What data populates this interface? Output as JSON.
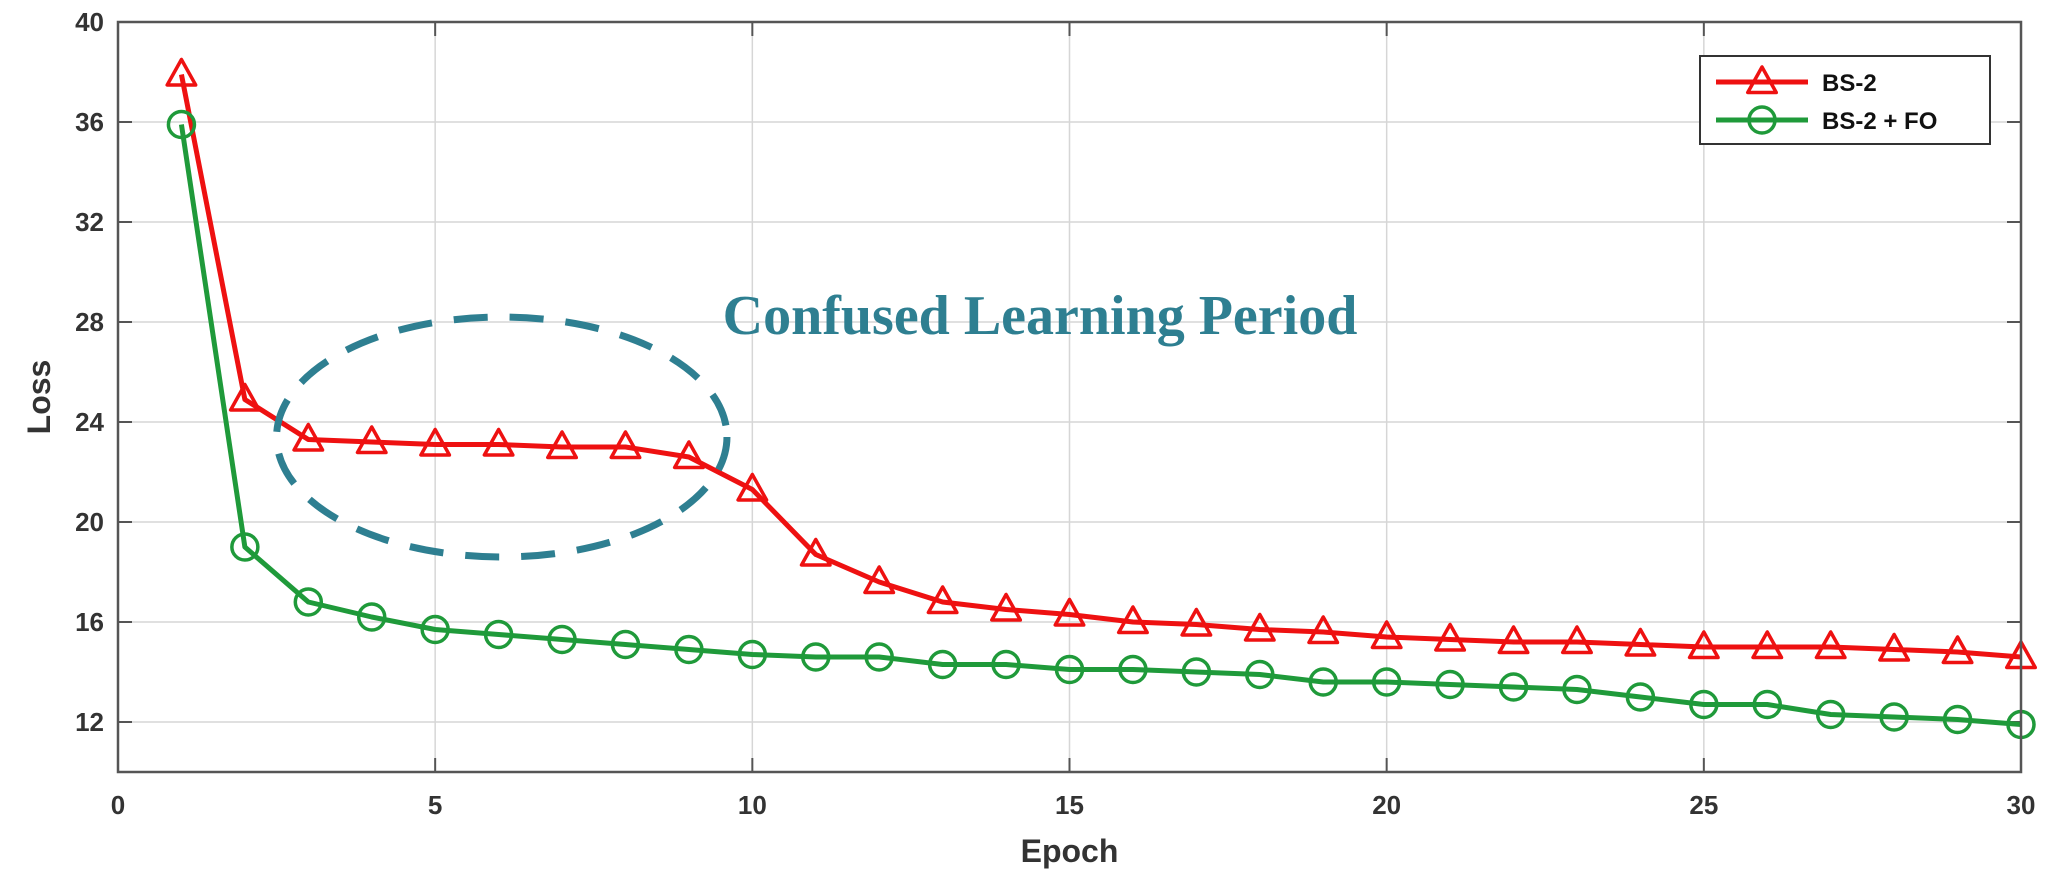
{
  "colors": {
    "series_red": "#ee1111",
    "series_green": "#1f9a3a",
    "annotation": "#2e7f91",
    "grid": "#d6d6d6",
    "axis": "#555555"
  },
  "chart_data": {
    "type": "line",
    "title": "",
    "xlabel": "Epoch",
    "ylabel": "Loss",
    "xlim": [
      0,
      30
    ],
    "ylim": [
      10,
      40
    ],
    "xticks": [
      0,
      5,
      10,
      15,
      20,
      25,
      30
    ],
    "yticks": [
      12,
      16,
      20,
      24,
      28,
      32,
      36,
      40
    ],
    "grid": true,
    "legend_position": "top-right",
    "x": [
      1,
      2,
      3,
      4,
      5,
      6,
      7,
      8,
      9,
      10,
      11,
      12,
      13,
      14,
      15,
      16,
      17,
      18,
      19,
      20,
      21,
      22,
      23,
      24,
      25,
      26,
      27,
      28,
      29,
      30
    ],
    "series": [
      {
        "name": "BS-2",
        "marker": "triangle",
        "color": "#ee1111",
        "values": [
          37.9,
          24.9,
          23.3,
          23.2,
          23.1,
          23.1,
          23.0,
          23.0,
          22.6,
          21.3,
          18.7,
          17.6,
          16.8,
          16.5,
          16.3,
          16.0,
          15.9,
          15.7,
          15.6,
          15.4,
          15.3,
          15.2,
          15.2,
          15.1,
          15.0,
          15.0,
          15.0,
          14.9,
          14.8,
          14.6
        ]
      },
      {
        "name": "BS-2 + FO",
        "marker": "circle",
        "color": "#1f9a3a",
        "values": [
          35.9,
          19.0,
          16.8,
          16.2,
          15.7,
          15.5,
          15.3,
          15.1,
          14.9,
          14.7,
          14.6,
          14.6,
          14.3,
          14.3,
          14.1,
          14.1,
          14.0,
          13.9,
          13.6,
          13.6,
          13.5,
          13.4,
          13.3,
          13.0,
          12.7,
          12.7,
          12.3,
          12.2,
          12.1,
          11.9
        ]
      }
    ],
    "annotations": [
      {
        "text": "Confused Learning Period",
        "shape": "dashed-ellipse",
        "x_range": [
          2.5,
          9.6
        ],
        "y_range": [
          18.6,
          28.2
        ]
      }
    ]
  }
}
